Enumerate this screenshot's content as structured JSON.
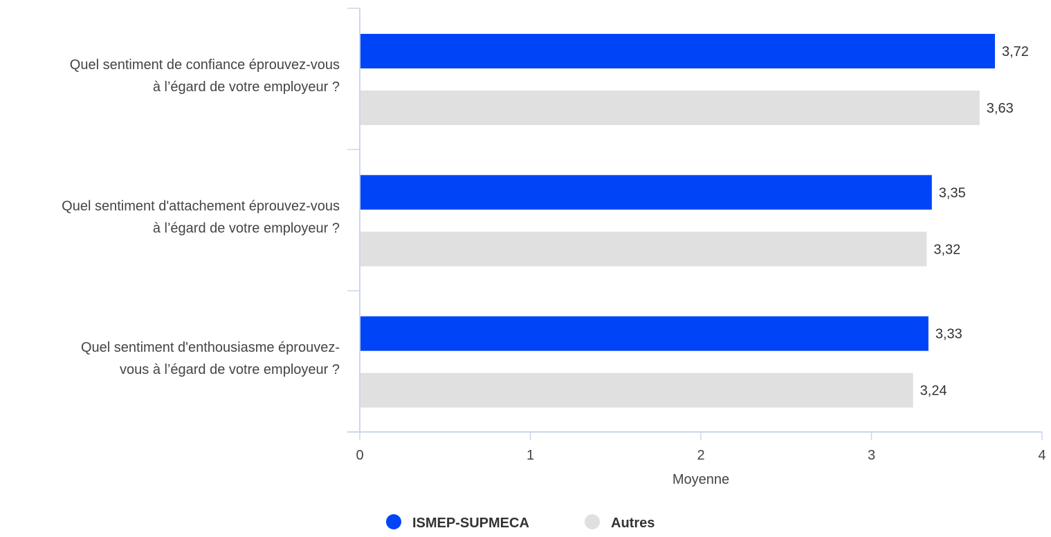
{
  "chart_data": {
    "type": "bar",
    "orientation": "horizontal",
    "categories": [
      [
        "Quel sentiment de confiance éprouvez-vous",
        "à l’égard de votre employeur ?"
      ],
      [
        "Quel sentiment d'attachement éprouvez-vous",
        "à l’égard de votre employeur ?"
      ],
      [
        "Quel sentiment d'enthousiasme éprouvez-",
        "vous à l’égard de votre employeur ?"
      ]
    ],
    "series": [
      {
        "name": "ISMEP-SUPMECA",
        "color": "#0044f7",
        "values": [
          3.72,
          3.35,
          3.33
        ],
        "labels": [
          "3,72",
          "3,35",
          "3,33"
        ]
      },
      {
        "name": "Autres",
        "color": "#e0e0e0",
        "values": [
          3.63,
          3.32,
          3.24
        ],
        "labels": [
          "3,63",
          "3,32",
          "3,24"
        ]
      }
    ],
    "xlabel": "Moyenne",
    "xlim": [
      0,
      4
    ],
    "xticks": [
      0,
      1,
      2,
      3,
      4
    ],
    "xtick_labels": [
      "0",
      "1",
      "2",
      "3",
      "4"
    ],
    "grid": false,
    "legend_position": "bottom-center",
    "axis_color": "#ccd6eb"
  }
}
